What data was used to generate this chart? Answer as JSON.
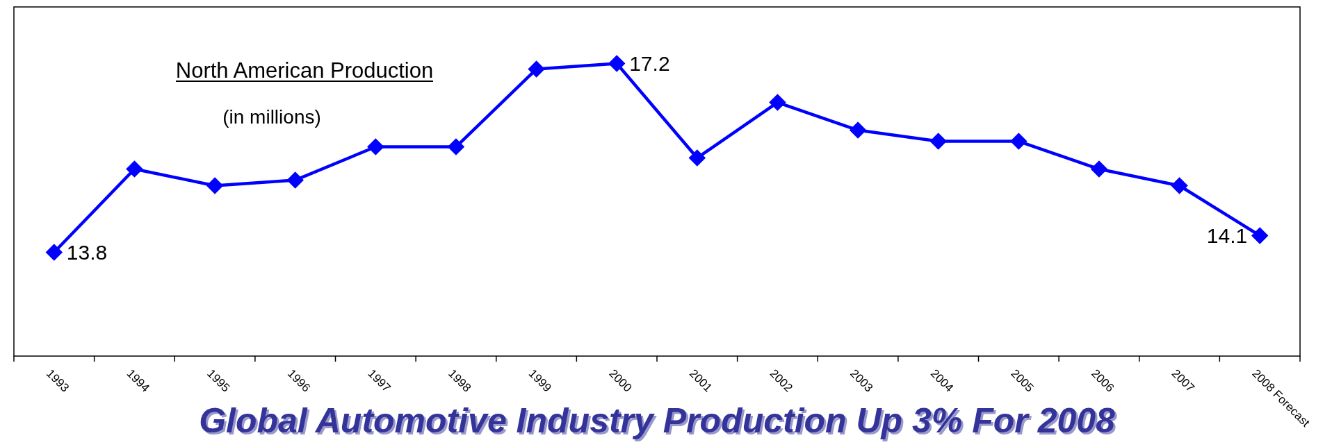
{
  "chart_data": {
    "type": "line",
    "title": "North American Production",
    "subtitle": "(in millions)",
    "annotations": [
      "Global Automotive Industry Production Up 3% For 2008"
    ],
    "categories": [
      "1993",
      "1994",
      "1995",
      "1996",
      "1997",
      "1998",
      "1999",
      "2000",
      "2001",
      "2002",
      "2003",
      "2004",
      "2005",
      "2006",
      "2007",
      "2008 Forecast"
    ],
    "series": [
      {
        "color": "#0000ff",
        "values": [
          13.8,
          15.3,
          15.0,
          15.1,
          15.7,
          15.7,
          17.1,
          17.2,
          15.5,
          16.5,
          16.0,
          15.8,
          15.8,
          15.3,
          15.0,
          14.1
        ],
        "value_labels": [
          "13.8",
          null,
          null,
          null,
          null,
          null,
          null,
          "17.2",
          null,
          null,
          null,
          null,
          null,
          null,
          null,
          "14.1"
        ]
      }
    ],
    "marker": "diamond",
    "line_style": "solid"
  }
}
